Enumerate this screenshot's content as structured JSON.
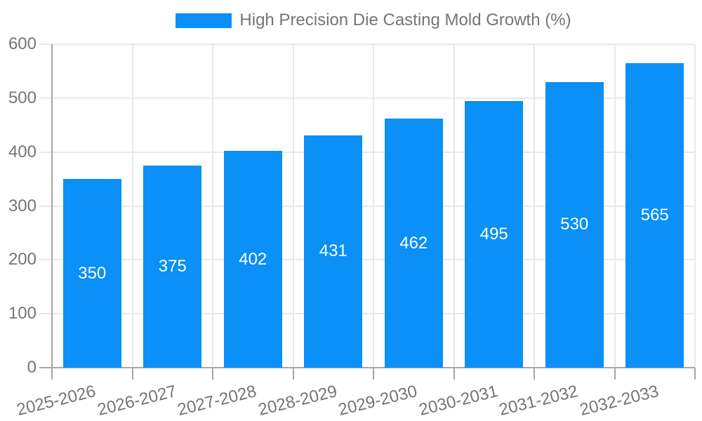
{
  "chart_data": {
    "type": "bar",
    "title": "High Precision Die Casting Mold Growth (%)",
    "categories": [
      "2025-2026",
      "2026-2027",
      "2027-2028",
      "2028-2029",
      "2029-2030",
      "2030-2031",
      "2031-2032",
      "2032-2033"
    ],
    "values": [
      350,
      375,
      402,
      431,
      462,
      495,
      530,
      565
    ],
    "xlabel": "",
    "ylabel": "",
    "ylim": [
      0,
      600
    ],
    "yticks": [
      0,
      100,
      200,
      300,
      400,
      500,
      600
    ],
    "grid": "on",
    "legend_position": "top-center",
    "legend_entries": [
      "High Precision Die Casting Mold Growth (%)"
    ],
    "bar_label_position": "inside-center",
    "x_label_rotation_deg": -14,
    "colors": {
      "bar": "#0a90f6",
      "text": "#757575",
      "grid": "#e8e8e8",
      "axis": "#a6a6a6",
      "bar_label": "#ffffff",
      "background": "#ffffff"
    }
  }
}
